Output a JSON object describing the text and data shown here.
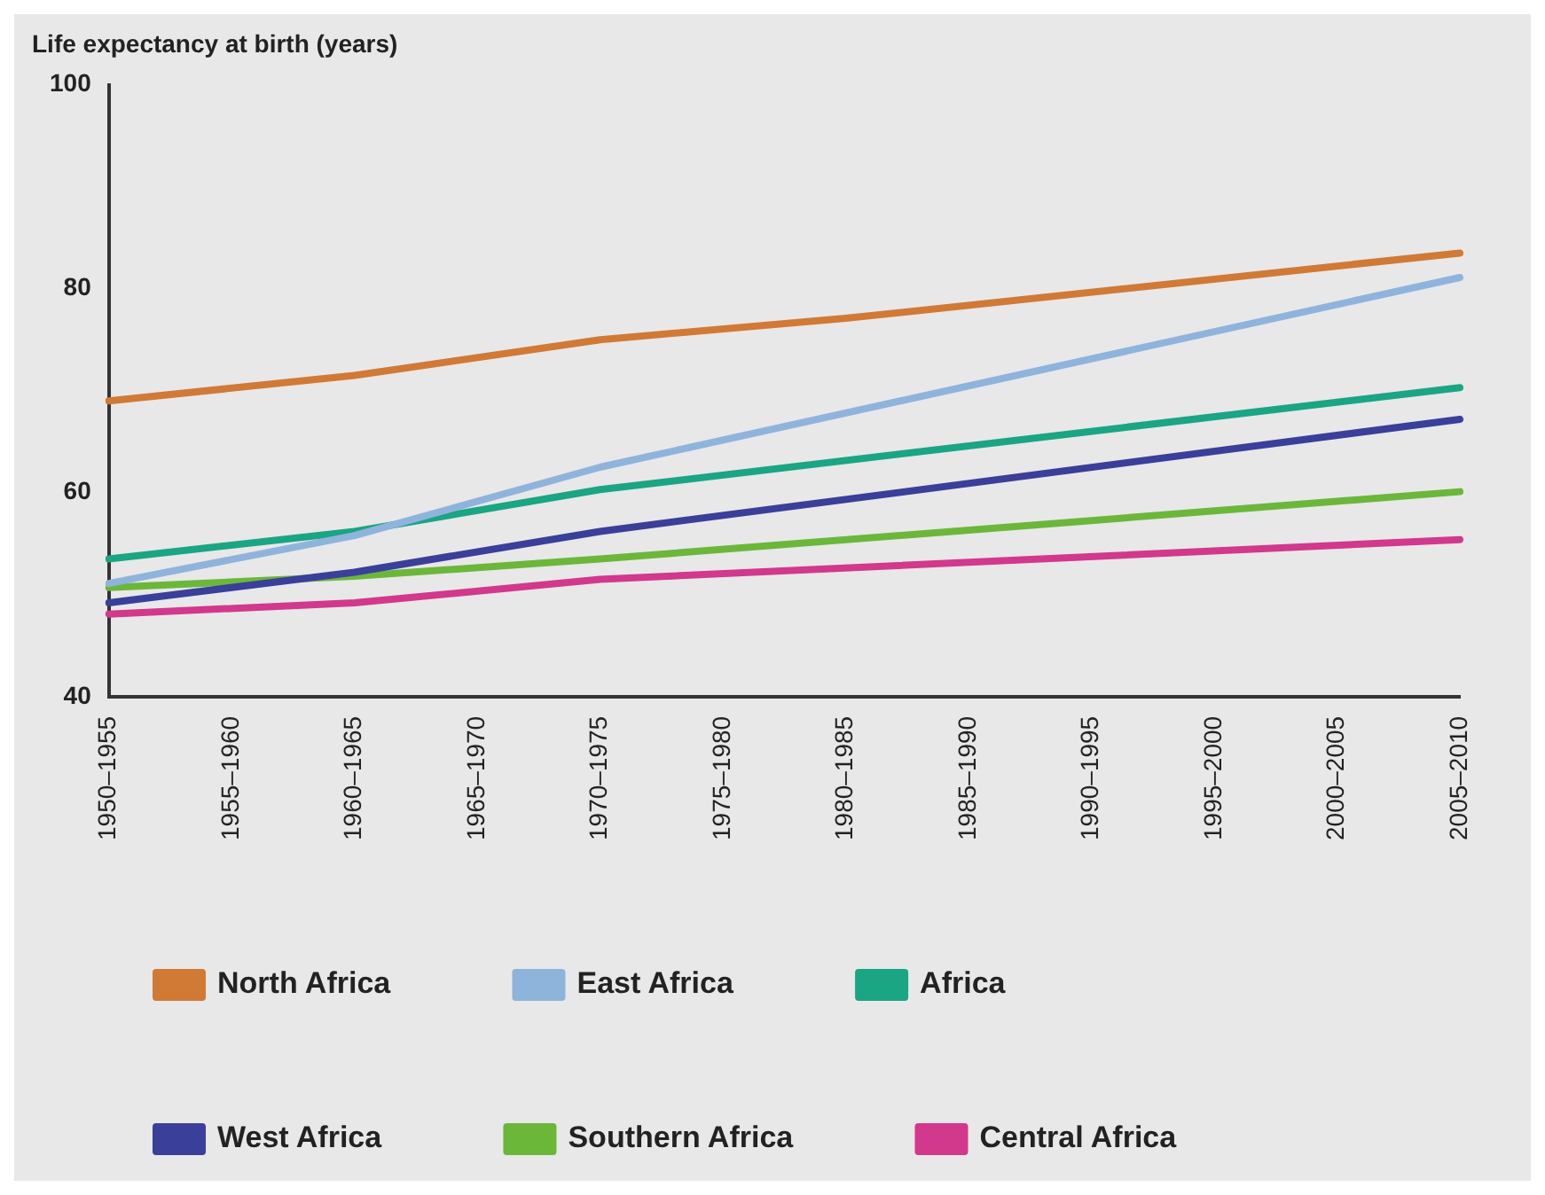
{
  "chart_data": {
    "type": "line",
    "ylabel": "Life expectancy at birth (years)",
    "categories": [
      "1950–1955",
      "1955–1960",
      "1960–1965",
      "1965–1970",
      "1970–1975",
      "1975–1980",
      "1980–1985",
      "1985–1990",
      "1990–1995",
      "1995–2000",
      "2000–2005",
      "2005–2010"
    ],
    "series": [
      {
        "name": "North Africa",
        "color": "#d07a35",
        "values": [
          69.0,
          null,
          71.5,
          null,
          75.0,
          null,
          77.1,
          null,
          null,
          null,
          null,
          83.5
        ]
      },
      {
        "name": "East Africa",
        "color": "#8fb4dc",
        "values": [
          51.1,
          null,
          55.8,
          null,
          62.5,
          null,
          null,
          null,
          null,
          null,
          null,
          81.1
        ]
      },
      {
        "name": "Africa",
        "color": "#1aa583",
        "values": [
          53.5,
          null,
          56.2,
          null,
          60.3,
          null,
          null,
          null,
          null,
          null,
          null,
          70.3
        ]
      },
      {
        "name": "West Africa",
        "color": "#3a3f9a",
        "values": [
          49.2,
          null,
          52.2,
          null,
          56.2,
          null,
          null,
          null,
          null,
          null,
          null,
          67.2
        ]
      },
      {
        "name": "Southern Africa",
        "color": "#6bb73a",
        "values": [
          50.7,
          null,
          51.8,
          null,
          53.5,
          null,
          null,
          null,
          null,
          null,
          null,
          60.1
        ]
      },
      {
        "name": "Central Africa",
        "color": "#d2388c",
        "values": [
          48.1,
          null,
          49.2,
          null,
          51.5,
          null,
          null,
          null,
          null,
          null,
          null,
          55.4
        ]
      }
    ],
    "ylim": [
      40,
      100
    ],
    "yticks": [
      40,
      60,
      80,
      100
    ],
    "grid": false,
    "legend": "bottom",
    "marker": "none",
    "line_style": "solid"
  }
}
